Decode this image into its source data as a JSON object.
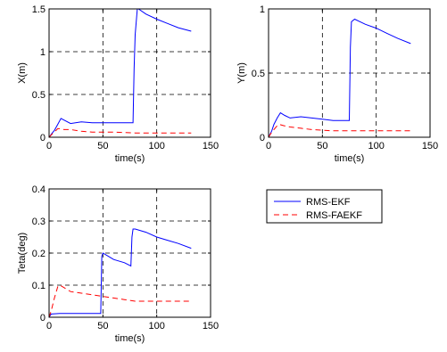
{
  "chart_data": [
    {
      "type": "line",
      "xlabel": "time(s)",
      "ylabel": "X(m)",
      "xlim": [
        0,
        150
      ],
      "ylim": [
        0,
        1.5
      ],
      "xticks": [
        0,
        50,
        100,
        150
      ],
      "yticks": [
        0,
        0.5,
        1,
        1.5
      ],
      "ytick_labels": [
        "0",
        "0.5",
        "1",
        "1.5"
      ],
      "grid": true,
      "series": [
        {
          "name": "RMS-EKF",
          "color": "#0000ff",
          "dash": "solid",
          "x": [
            0,
            3,
            5,
            8,
            11,
            14,
            20,
            30,
            40,
            50,
            60,
            70,
            78,
            79,
            80,
            82,
            83,
            90,
            100,
            110,
            120,
            132
          ],
          "y": [
            0,
            0.05,
            0.08,
            0.15,
            0.22,
            0.2,
            0.16,
            0.18,
            0.17,
            0.17,
            0.17,
            0.17,
            0.17,
            0.8,
            1.2,
            1.5,
            1.5,
            1.44,
            1.38,
            1.33,
            1.28,
            1.24
          ]
        },
        {
          "name": "RMS-FAEKF",
          "color": "#ff0000",
          "dash": "dashed",
          "x": [
            0,
            3,
            5,
            8,
            10,
            14,
            20,
            30,
            40,
            60,
            80,
            100,
            132
          ],
          "y": [
            0,
            0.04,
            0.06,
            0.1,
            0.1,
            0.09,
            0.09,
            0.07,
            0.06,
            0.06,
            0.05,
            0.05,
            0.05
          ]
        }
      ]
    },
    {
      "type": "line",
      "xlabel": "time(s)",
      "ylabel": "Y(m)",
      "xlim": [
        0,
        150
      ],
      "ylim": [
        0,
        1
      ],
      "xticks": [
        0,
        50,
        100,
        150
      ],
      "yticks": [
        0,
        0.5,
        1
      ],
      "ytick_labels": [
        "0",
        "0.5",
        "1"
      ],
      "grid": true,
      "series": [
        {
          "name": "RMS-EKF",
          "color": "#0000ff",
          "dash": "solid",
          "x": [
            0,
            3,
            5,
            8,
            11,
            15,
            20,
            30,
            40,
            50,
            60,
            70,
            75,
            76,
            77,
            80,
            85,
            90,
            100,
            110,
            120,
            132
          ],
          "y": [
            0,
            0.05,
            0.1,
            0.15,
            0.19,
            0.17,
            0.15,
            0.16,
            0.15,
            0.14,
            0.13,
            0.13,
            0.13,
            0.7,
            0.9,
            0.92,
            0.9,
            0.88,
            0.85,
            0.81,
            0.77,
            0.73
          ]
        },
        {
          "name": "RMS-FAEKF",
          "color": "#ff0000",
          "dash": "dashed",
          "x": [
            0,
            3,
            5,
            8,
            10,
            14,
            20,
            30,
            40,
            60,
            80,
            100,
            132
          ],
          "y": [
            0,
            0.04,
            0.06,
            0.09,
            0.1,
            0.09,
            0.08,
            0.07,
            0.06,
            0.05,
            0.05,
            0.05,
            0.05
          ]
        }
      ]
    },
    {
      "type": "line",
      "xlabel": "time(s)",
      "ylabel": "Teta(deg)",
      "xlim": [
        0,
        150
      ],
      "ylim": [
        0,
        0.4
      ],
      "xticks": [
        0,
        50,
        100,
        150
      ],
      "yticks": [
        0,
        0.1,
        0.2,
        0.3,
        0.4
      ],
      "ytick_labels": [
        "0",
        "0.1",
        "0.2",
        "0.3",
        "0.4"
      ],
      "grid": true,
      "series": [
        {
          "name": "RMS-EKF",
          "color": "#0000ff",
          "dash": "solid",
          "x": [
            0,
            2,
            10,
            20,
            30,
            40,
            48,
            49,
            50,
            55,
            60,
            70,
            76,
            77,
            78,
            80,
            90,
            100,
            110,
            120,
            132
          ],
          "y": [
            0,
            0.01,
            0.012,
            0.012,
            0.012,
            0.012,
            0.012,
            0.19,
            0.2,
            0.19,
            0.18,
            0.17,
            0.16,
            0.25,
            0.275,
            0.275,
            0.265,
            0.25,
            0.24,
            0.23,
            0.215
          ]
        },
        {
          "name": "RMS-FAEKF",
          "color": "#ff0000",
          "dash": "dashed",
          "x": [
            0,
            2,
            5,
            8,
            10,
            15,
            20,
            30,
            40,
            50,
            60,
            70,
            80,
            100,
            132
          ],
          "y": [
            0,
            0.02,
            0.06,
            0.095,
            0.1,
            0.09,
            0.08,
            0.075,
            0.07,
            0.065,
            0.06,
            0.055,
            0.05,
            0.05,
            0.05
          ]
        }
      ]
    }
  ],
  "legend": {
    "placement": "right of bottom-left panel",
    "entries": [
      {
        "label": "RMS-EKF",
        "color": "#0000ff",
        "dash": "solid"
      },
      {
        "label": "RMS-FAEKF",
        "color": "#ff0000",
        "dash": "dashed"
      }
    ]
  }
}
